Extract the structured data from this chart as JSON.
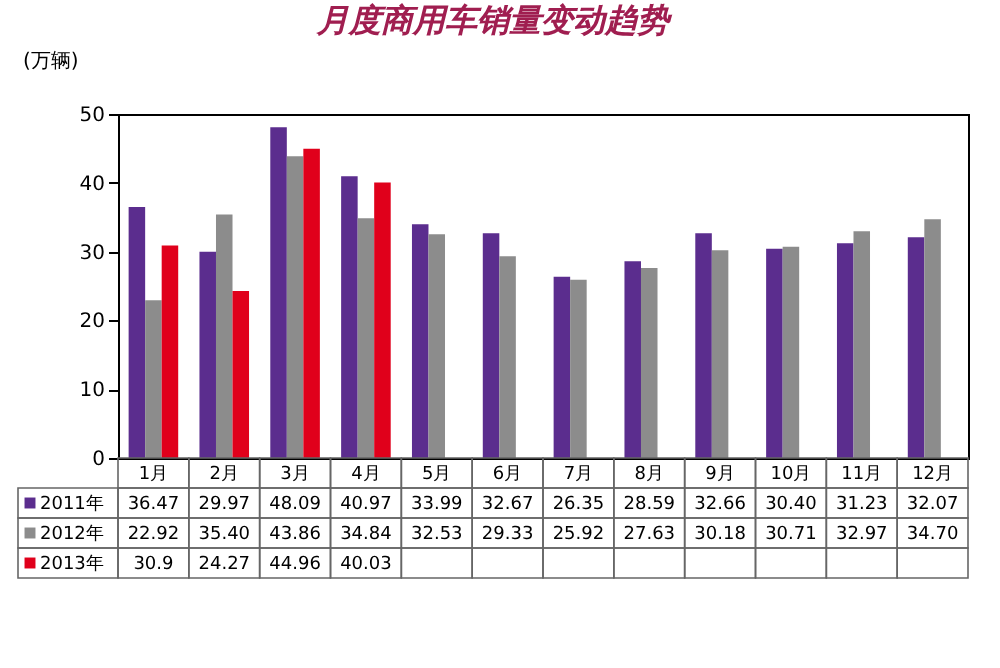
{
  "chart_data": {
    "type": "bar",
    "title": "月度商用车销量变动趋势",
    "ylabel": "(万辆)",
    "categories": [
      "1月",
      "2月",
      "3月",
      "4月",
      "5月",
      "6月",
      "7月",
      "8月",
      "9月",
      "10月",
      "11月",
      "12月"
    ],
    "series": [
      {
        "name": "2011年",
        "color": "#5b2d8e",
        "values": [
          36.47,
          29.97,
          48.09,
          40.97,
          33.99,
          32.67,
          26.35,
          28.59,
          32.66,
          30.4,
          31.23,
          32.07
        ],
        "value_labels": [
          "36.47",
          "29.97",
          "48.09",
          "40.97",
          "33.99",
          "32.67",
          "26.35",
          "28.59",
          "32.66",
          "30.40",
          "31.23",
          "32.07"
        ]
      },
      {
        "name": "2012年",
        "color": "#8c8c8c",
        "values": [
          22.92,
          35.4,
          43.86,
          34.84,
          32.53,
          29.33,
          25.92,
          27.63,
          30.18,
          30.71,
          32.97,
          34.7
        ],
        "value_labels": [
          "22.92",
          "35.40",
          "43.86",
          "34.84",
          "32.53",
          "29.33",
          "25.92",
          "27.63",
          "30.18",
          "30.71",
          "32.97",
          "34.70"
        ]
      },
      {
        "name": "2013年",
        "color": "#e0001b",
        "values": [
          30.9,
          24.27,
          44.96,
          40.03,
          null,
          null,
          null,
          null,
          null,
          null,
          null,
          null
        ],
        "value_labels": [
          "30.9",
          "24.27",
          "44.96",
          "40.03",
          null,
          null,
          null,
          null,
          null,
          null,
          null,
          null
        ]
      }
    ],
    "ylim": [
      0,
      50
    ],
    "yticks": [
      0,
      10,
      20,
      30,
      40,
      50
    ],
    "grid": false,
    "legend": "bottom left"
  }
}
